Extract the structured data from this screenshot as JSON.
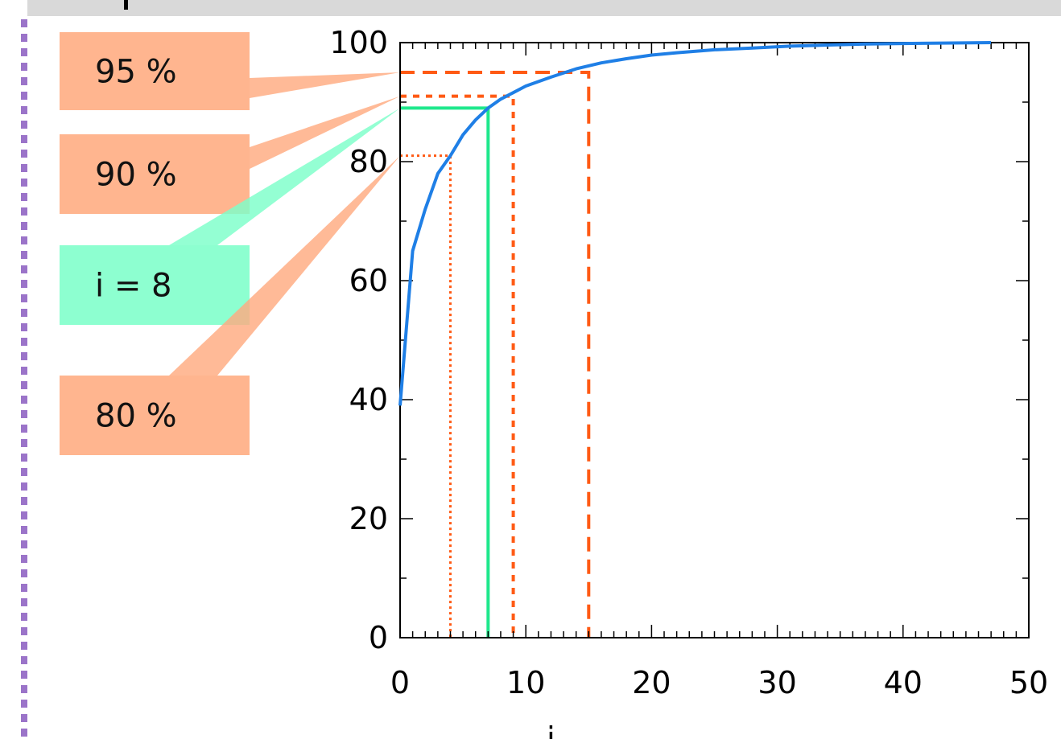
{
  "chart_data": {
    "type": "line",
    "title": "",
    "xlabel": "i",
    "ylabel": "",
    "xlim": [
      0,
      50
    ],
    "ylim": [
      0,
      100
    ],
    "xticks": [
      0,
      10,
      20,
      30,
      40,
      50
    ],
    "yticks": [
      0,
      20,
      40,
      60,
      80,
      100
    ],
    "grid": false,
    "series": [
      {
        "color": "#1f7fe6",
        "x": [
          0,
          1,
          2,
          3,
          4,
          5,
          6,
          7,
          8,
          9,
          10,
          12,
          14,
          16,
          18,
          20,
          22,
          25,
          28,
          31,
          34,
          37,
          40,
          43,
          47
        ],
        "y": [
          39,
          65,
          72,
          78,
          81,
          84.5,
          87,
          89,
          90.5,
          91.6,
          92.7,
          94.2,
          95.6,
          96.6,
          97.3,
          97.9,
          98.3,
          98.8,
          99.1,
          99.4,
          99.6,
          99.75,
          99.85,
          99.92,
          100
        ]
      }
    ],
    "reference_lines": [
      {
        "color": "#ff5a14",
        "style": "dashed",
        "x": 15,
        "y": 95
      },
      {
        "color": "#ff5a14",
        "style": "short-dashed",
        "x": 9,
        "y": 91
      },
      {
        "color": "#1ee88c",
        "style": "solid",
        "x": 7,
        "y": 89
      },
      {
        "color": "#ff5a14",
        "style": "dotted",
        "x": 4,
        "y": 81
      }
    ],
    "annotations": [
      {
        "text": "95 %",
        "color": "#ffab80",
        "target": {
          "x": 0,
          "y": 95
        }
      },
      {
        "text": "90 %",
        "color": "#ffab80",
        "target": {
          "x": 0,
          "y": 91
        }
      },
      {
        "text": "i = 8",
        "color": "#7dffc9",
        "target": {
          "x": 0,
          "y": 89
        }
      },
      {
        "text": "80 %",
        "color": "#ffab80",
        "target": {
          "x": 0,
          "y": 81
        }
      }
    ]
  }
}
